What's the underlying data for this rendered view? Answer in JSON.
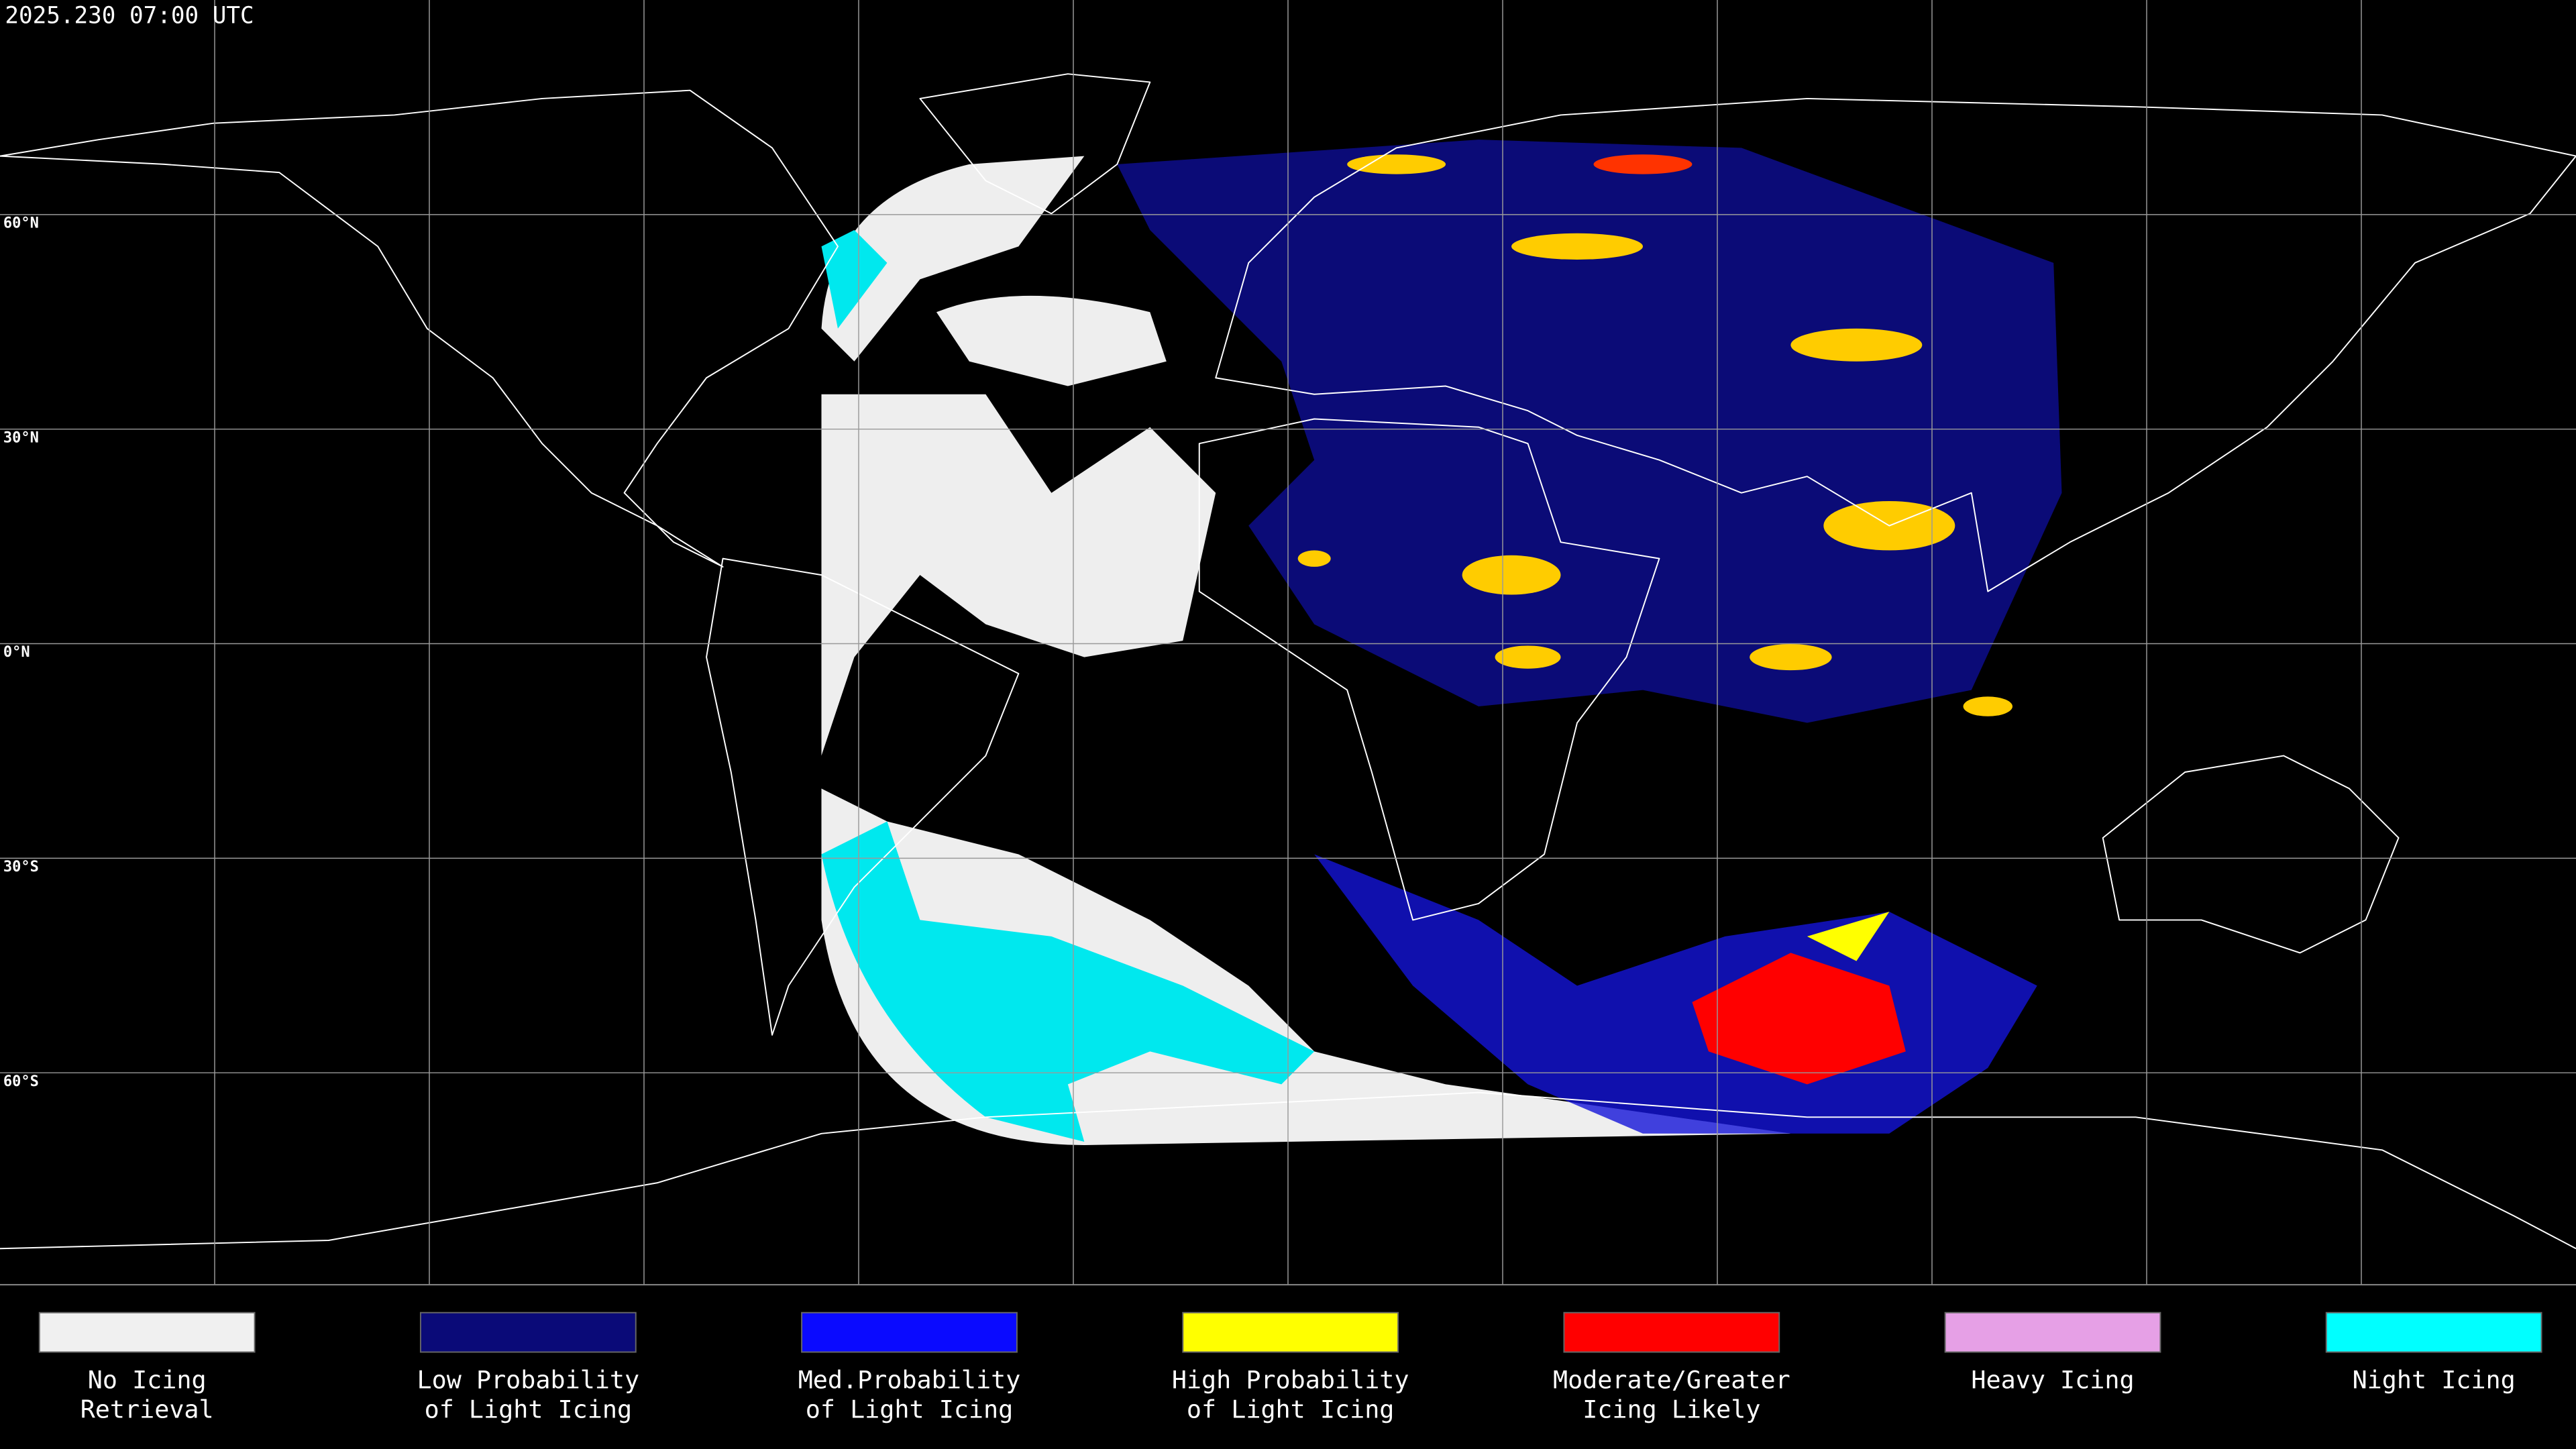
{
  "header": {
    "timestamp": "2025.230 07:00 UTC"
  },
  "grid": {
    "lat_labels": [
      "60°N",
      "30°N",
      "0°N",
      "30°S",
      "60°S"
    ]
  },
  "legend": {
    "items": [
      {
        "lines": [
          "No Icing",
          "Retrieval"
        ],
        "color": "#f0f0f0"
      },
      {
        "lines": [
          "Low Probability",
          "of Light Icing"
        ],
        "color": "#0a0a78"
      },
      {
        "lines": [
          "Med.Probability",
          "of Light Icing"
        ],
        "color": "#0a0aff"
      },
      {
        "lines": [
          "High Probability",
          "of Light Icing"
        ],
        "color": "#ffff00"
      },
      {
        "lines": [
          "Moderate/Greater",
          "Icing Likely"
        ],
        "color": "#ff0000"
      },
      {
        "lines": [
          "Heavy Icing"
        ],
        "color": "#e6a0e6"
      },
      {
        "lines": [
          "Night Icing"
        ],
        "color": "#00ffff"
      }
    ]
  }
}
